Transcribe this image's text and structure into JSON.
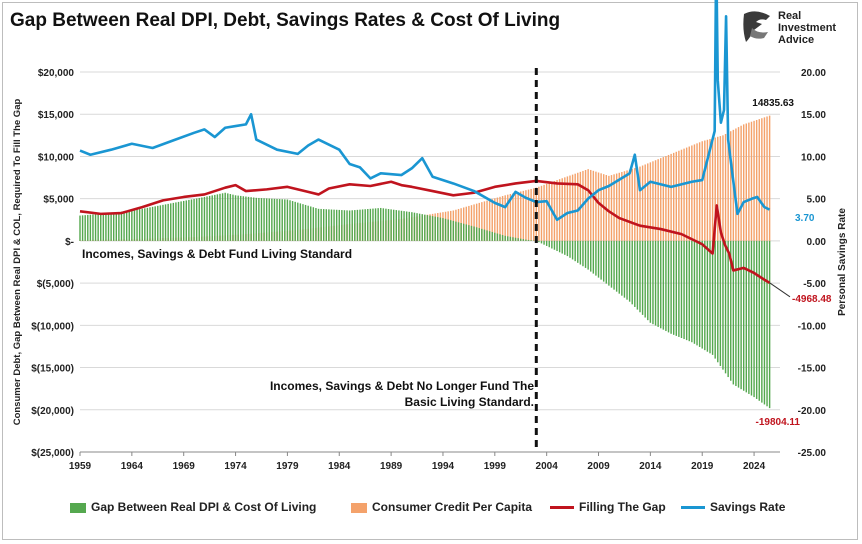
{
  "title": "Gap Between Real DPI, Debt, Savings Rates & Cost Of Living",
  "logo": {
    "line1": "Real",
    "line2": "Investment",
    "line3": "Advice",
    "icon": "eagle-head-icon"
  },
  "chart_data": {
    "type": "bar",
    "title": "Gap Between Real DPI, Debt, Savings Rates & Cost Of Living",
    "ylabel_left": "Consumer Debt, Gap Between Real DPI & COL, Required To Fill The Gap",
    "ylabel_right": "Personal Savings Rate",
    "x_ticks": [
      "1959",
      "1964",
      "1969",
      "1974",
      "1979",
      "1984",
      "1989",
      "1994",
      "1999",
      "2004",
      "2009",
      "2014",
      "2019",
      "2024"
    ],
    "y_left_ticks": [
      "$20,000",
      "$15,000",
      "$10,000",
      "$5,000",
      "$-",
      "$(5,000)",
      "$(10,000)",
      "$(15,000)",
      "$(20,000)",
      "$(25,000)"
    ],
    "y_right_ticks": [
      "20.00",
      "15.00",
      "10.00",
      "5.00",
      "0.00",
      "-5.00",
      "-10.00",
      "-15.00",
      "-20.00",
      "-25.00"
    ],
    "ylim_left": [
      -25000,
      20000
    ],
    "ylim_right": [
      -25,
      20
    ],
    "xlim": [
      1959,
      2026.5
    ],
    "vertical_marker_year": 2003,
    "annotations": {
      "upper": "Incomes, Savings & Debt Fund Living Standard",
      "lower_line1": "Incomes, Savings & Debt No Longer Fund The",
      "lower_line2": "Basic Living Standard."
    },
    "end_labels": {
      "credit": "14835.63",
      "savings": "3.70",
      "filling": "-4968.48",
      "gap": "-19804.11"
    },
    "colors": {
      "gap": "#55a84f",
      "credit": "#f4a26b",
      "filling": "#c0141e",
      "savings": "#1a96d2"
    },
    "legend": [
      "Gap Between Real DPI & Cost Of Living",
      "Consumer Credit Per Capita",
      "Filling The Gap",
      "Savings Rate"
    ],
    "series": [
      {
        "name": "Gap Between Real DPI & Cost Of Living",
        "kind": "bar",
        "x": [
          1959,
          1962,
          1965,
          1968,
          1971,
          1973,
          1974,
          1976,
          1979,
          1982,
          1985,
          1988,
          1991,
          1994,
          1997,
          2000,
          2002,
          2003,
          2004,
          2006,
          2008,
          2010,
          2012,
          2014,
          2016,
          2018,
          2020,
          2022,
          2024,
          2025.5
        ],
        "y": [
          3000,
          3300,
          3800,
          4500,
          5200,
          5700,
          5400,
          5100,
          4900,
          3800,
          3600,
          3900,
          3400,
          2700,
          1700,
          600,
          150,
          0,
          -600,
          -1800,
          -3400,
          -5300,
          -7200,
          -9700,
          -11000,
          -12000,
          -13500,
          -17000,
          -18500,
          -19804.11
        ]
      },
      {
        "name": "Consumer Credit Per Capita",
        "kind": "bar",
        "x": [
          1959,
          1965,
          1970,
          1975,
          1980,
          1985,
          1990,
          1995,
          2000,
          2003,
          2005,
          2008,
          2010,
          2013,
          2016,
          2019,
          2021,
          2023,
          2025.5
        ],
        "y": [
          100,
          250,
          450,
          800,
          1300,
          2000,
          2600,
          3600,
          5400,
          6300,
          7200,
          8500,
          7700,
          8800,
          10300,
          11800,
          12500,
          13800,
          14835.63
        ]
      },
      {
        "name": "Filling The Gap",
        "kind": "line",
        "x": [
          1959,
          1961,
          1963,
          1965,
          1967,
          1969,
          1971,
          1973,
          1974,
          1975,
          1977,
          1979,
          1981,
          1982,
          1983,
          1985,
          1987,
          1989,
          1990,
          1991,
          1993,
          1995,
          1997,
          1999,
          2001,
          2003,
          2005,
          2007,
          2008,
          2009,
          2010,
          2011,
          2013,
          2015,
          2017,
          2019,
          2020,
          2020.4,
          2020.8,
          2021.2,
          2021.6,
          2022,
          2023,
          2024,
          2025,
          2025.5
        ],
        "y": [
          3500,
          3200,
          3300,
          4000,
          4800,
          5200,
          5500,
          6300,
          6600,
          5900,
          6100,
          6400,
          5800,
          5500,
          6200,
          6700,
          6500,
          7000,
          6600,
          6400,
          5900,
          5400,
          5700,
          6400,
          6800,
          7100,
          6800,
          6700,
          6000,
          4500,
          3500,
          2700,
          1800,
          1400,
          800,
          -400,
          -1500,
          4200,
          1000,
          -500,
          -1500,
          -3500,
          -3200,
          -3800,
          -4600,
          -4968.48
        ]
      },
      {
        "name": "Savings Rate",
        "kind": "line",
        "x": [
          1959,
          1960,
          1962,
          1964,
          1966,
          1968,
          1970,
          1971,
          1972,
          1973,
          1974,
          1975,
          1975.5,
          1976,
          1978,
          1980,
          1981,
          1982,
          1984,
          1985,
          1986,
          1987,
          1988,
          1990,
          1991,
          1992,
          1993,
          1995,
          1997,
          1999,
          2000,
          2001,
          2002,
          2003,
          2004,
          2005,
          2006,
          2007,
          2008,
          2009,
          2010,
          2012,
          2012.5,
          2013,
          2014,
          2016,
          2018,
          2019,
          2020.2,
          2020.35,
          2020.5,
          2020.8,
          2021.1,
          2021.3,
          2021.5,
          2021.9,
          2022.4,
          2023,
          2023.8,
          2024.3,
          2025,
          2025.5
        ],
        "y": [
          10.7,
          10.2,
          10.8,
          11.5,
          11.0,
          11.9,
          12.8,
          13.2,
          12.3,
          13.4,
          13.6,
          13.8,
          15.0,
          12.0,
          10.8,
          10.3,
          11.3,
          12.0,
          10.8,
          9.1,
          8.7,
          7.4,
          8.0,
          7.8,
          8.6,
          9.8,
          7.6,
          6.8,
          5.9,
          4.5,
          4.0,
          5.8,
          5.1,
          4.6,
          4.7,
          2.5,
          3.3,
          3.6,
          5.0,
          6.0,
          6.5,
          8.0,
          10.2,
          6.0,
          7.0,
          6.4,
          7.0,
          7.2,
          13.0,
          33.8,
          19.0,
          14.0,
          15.5,
          26.6,
          12.0,
          8.0,
          3.2,
          4.6,
          5.0,
          5.2,
          4.0,
          3.7
        ]
      }
    ]
  }
}
